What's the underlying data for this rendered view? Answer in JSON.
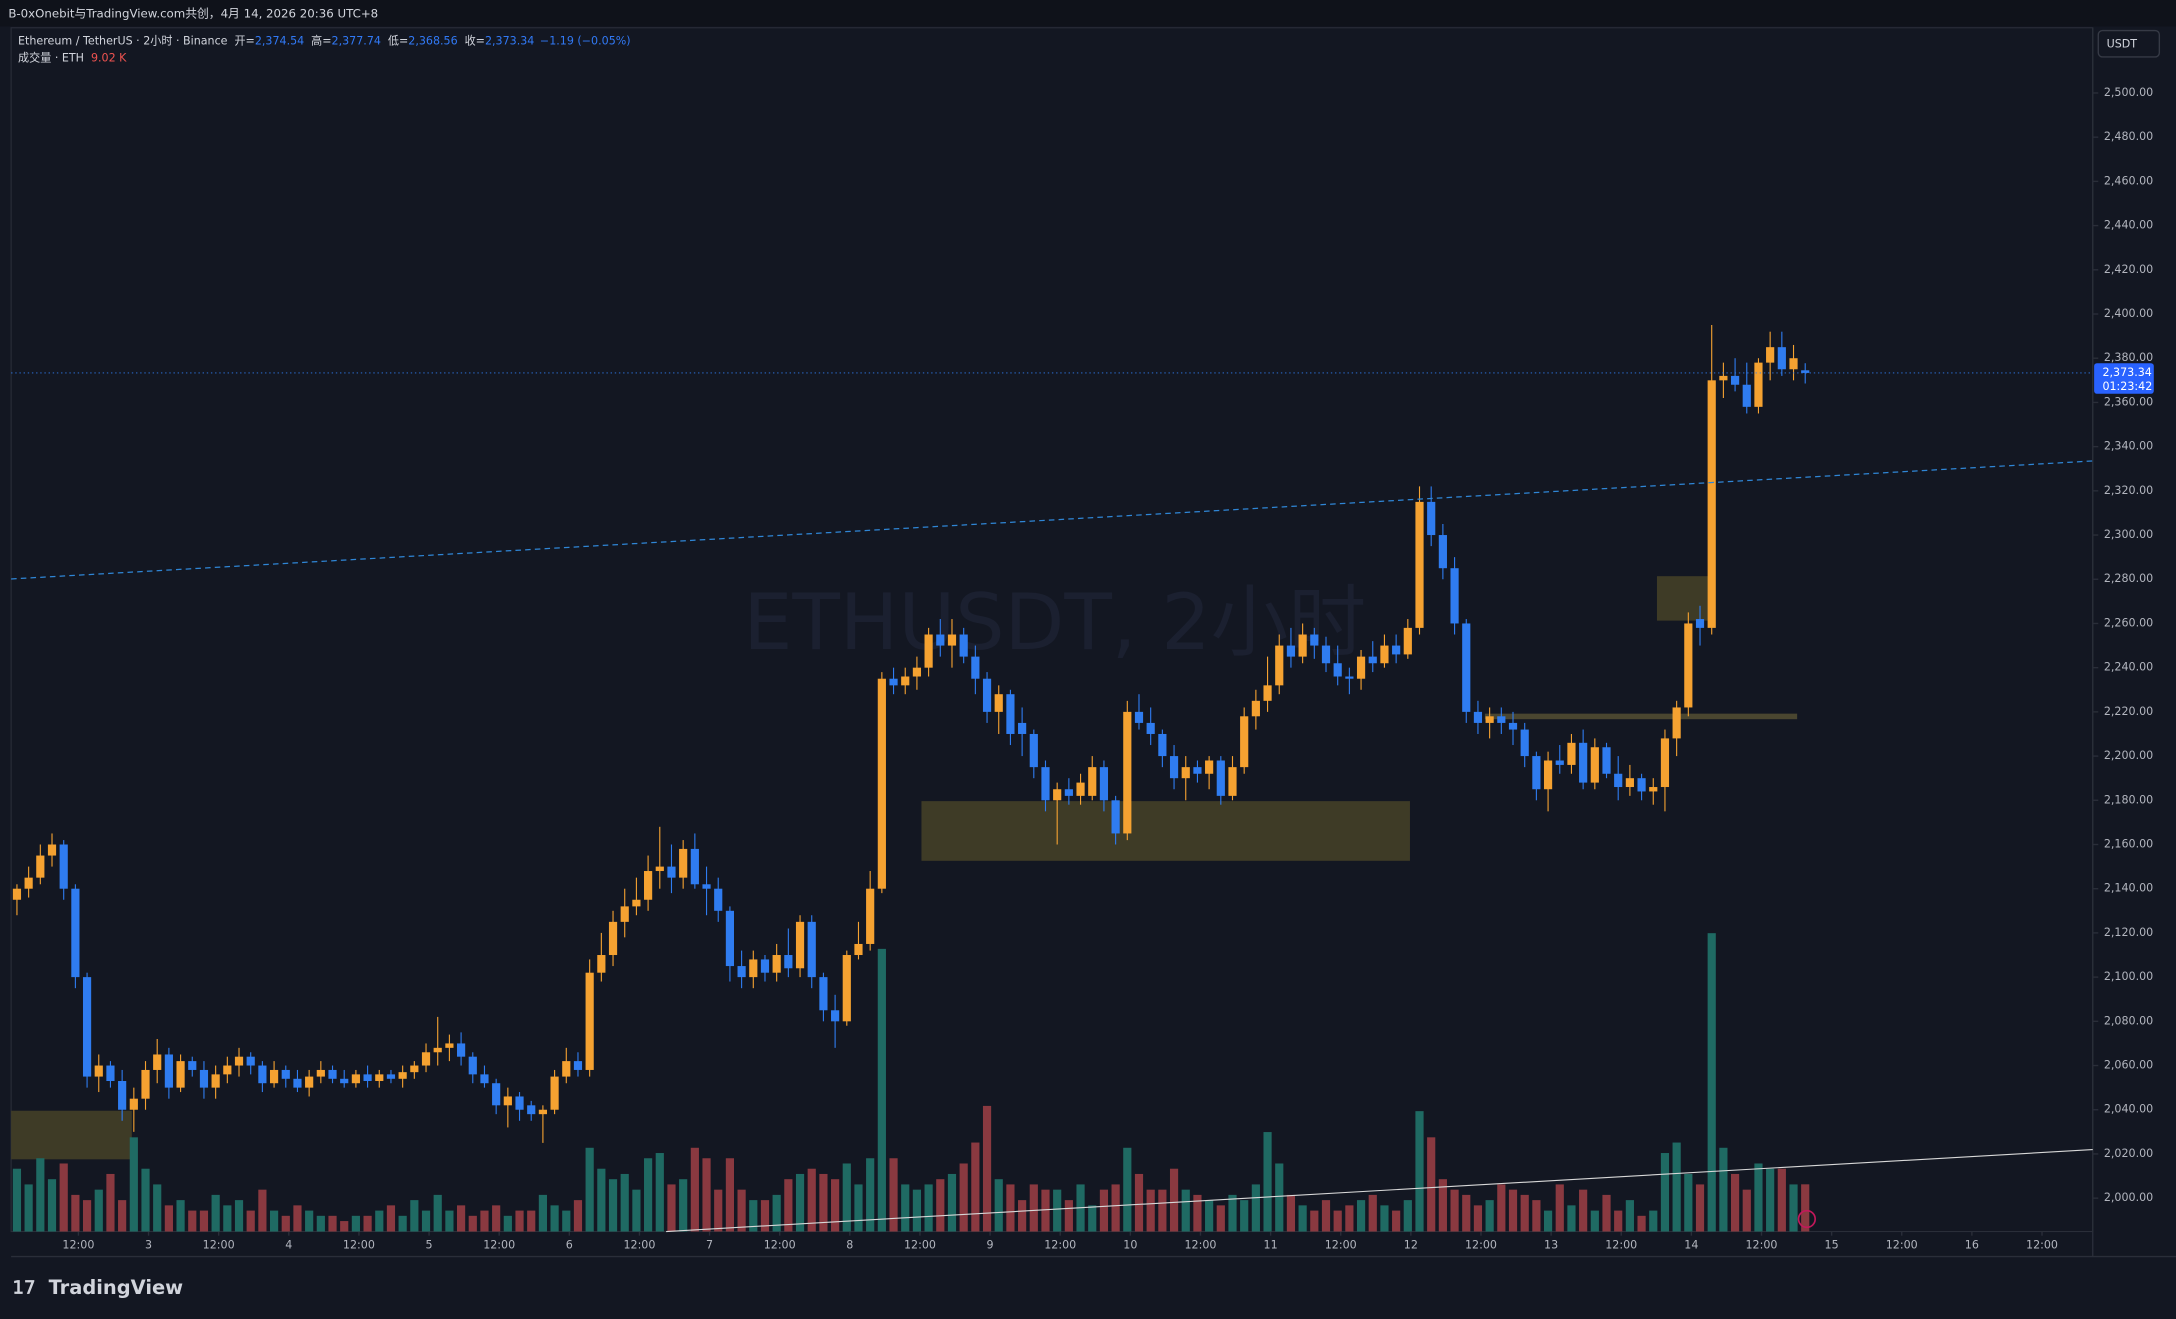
{
  "header": "B-0xOnebit与TradingView.com共创，4月 14, 2026 20:36 UTC+8",
  "footer": "TradingView",
  "chart_data": {
    "type": "candlestick",
    "symbol": "Ethereum / TetherUS · 2小时 · Binance",
    "legend": [
      {
        "key": "开=",
        "value": "2,374.54"
      },
      {
        "key": "高=",
        "value": "2,377.74"
      },
      {
        "key": "低=",
        "value": "2,368.56"
      },
      {
        "key": "收=",
        "value": "2,373.34"
      }
    ],
    "change": "−1.19 (−0.05%)",
    "volume_title": "成交量 · ETH",
    "volume_last": "9.02 K",
    "watermark": "ETHUSDT, 2小时",
    "currency": "USDT",
    "up_color": "#f5a231",
    "down_color": "#2f7cf0",
    "volume_up_color": "#1f6a63",
    "volume_down_color": "#8a3940",
    "ohlc": [
      [
        2135,
        2142,
        2128,
        2140
      ],
      [
        2140,
        2150,
        2136,
        2145
      ],
      [
        2145,
        2160,
        2142,
        2155
      ],
      [
        2155,
        2165,
        2150,
        2160
      ],
      [
        2160,
        2162,
        2135,
        2140
      ],
      [
        2140,
        2142,
        2095,
        2100
      ],
      [
        2100,
        2102,
        2050,
        2055
      ],
      [
        2055,
        2065,
        2048,
        2060
      ],
      [
        2060,
        2062,
        2050,
        2053
      ],
      [
        2053,
        2058,
        2035,
        2040
      ],
      [
        2040,
        2050,
        2030,
        2045
      ],
      [
        2045,
        2062,
        2040,
        2058
      ],
      [
        2058,
        2072,
        2052,
        2065
      ],
      [
        2065,
        2068,
        2045,
        2050
      ],
      [
        2050,
        2065,
        2048,
        2062
      ],
      [
        2062,
        2064,
        2055,
        2058
      ],
      [
        2058,
        2062,
        2045,
        2050
      ],
      [
        2050,
        2060,
        2045,
        2056
      ],
      [
        2056,
        2064,
        2052,
        2060
      ],
      [
        2060,
        2068,
        2055,
        2064
      ],
      [
        2064,
        2066,
        2056,
        2060
      ],
      [
        2060,
        2062,
        2048,
        2052
      ],
      [
        2052,
        2062,
        2050,
        2058
      ],
      [
        2058,
        2060,
        2050,
        2054
      ],
      [
        2054,
        2058,
        2048,
        2050
      ],
      [
        2050,
        2058,
        2046,
        2055
      ],
      [
        2055,
        2062,
        2052,
        2058
      ],
      [
        2058,
        2060,
        2052,
        2054
      ],
      [
        2054,
        2058,
        2050,
        2052
      ],
      [
        2052,
        2058,
        2050,
        2056
      ],
      [
        2056,
        2060,
        2050,
        2053
      ],
      [
        2053,
        2058,
        2050,
        2056
      ],
      [
        2056,
        2058,
        2052,
        2054
      ],
      [
        2054,
        2060,
        2050,
        2057
      ],
      [
        2057,
        2062,
        2054,
        2060
      ],
      [
        2060,
        2070,
        2057,
        2066
      ],
      [
        2066,
        2082,
        2060,
        2068
      ],
      [
        2068,
        2074,
        2062,
        2070
      ],
      [
        2070,
        2075,
        2060,
        2064
      ],
      [
        2064,
        2066,
        2052,
        2056
      ],
      [
        2056,
        2060,
        2050,
        2052
      ],
      [
        2052,
        2054,
        2038,
        2042
      ],
      [
        2042,
        2050,
        2032,
        2046
      ],
      [
        2046,
        2048,
        2035,
        2040
      ],
      [
        2042,
        2044,
        2035,
        2038
      ],
      [
        2038,
        2042,
        2025,
        2040
      ],
      [
        2040,
        2058,
        2038,
        2055
      ],
      [
        2055,
        2068,
        2052,
        2062
      ],
      [
        2062,
        2066,
        2055,
        2058
      ],
      [
        2058,
        2108,
        2055,
        2102
      ],
      [
        2102,
        2120,
        2098,
        2110
      ],
      [
        2110,
        2130,
        2105,
        2125
      ],
      [
        2125,
        2140,
        2118,
        2132
      ],
      [
        2132,
        2145,
        2128,
        2135
      ],
      [
        2135,
        2155,
        2130,
        2148
      ],
      [
        2148,
        2168,
        2140,
        2150
      ],
      [
        2150,
        2160,
        2138,
        2145
      ],
      [
        2145,
        2162,
        2140,
        2158
      ],
      [
        2158,
        2165,
        2140,
        2142
      ],
      [
        2142,
        2150,
        2128,
        2140
      ],
      [
        2140,
        2145,
        2125,
        2130
      ],
      [
        2130,
        2132,
        2098,
        2105
      ],
      [
        2105,
        2112,
        2095,
        2100
      ],
      [
        2100,
        2112,
        2095,
        2108
      ],
      [
        2108,
        2110,
        2098,
        2102
      ],
      [
        2102,
        2115,
        2098,
        2110
      ],
      [
        2110,
        2122,
        2100,
        2104
      ],
      [
        2104,
        2128,
        2100,
        2125
      ],
      [
        2125,
        2128,
        2095,
        2100
      ],
      [
        2100,
        2102,
        2080,
        2085
      ],
      [
        2085,
        2092,
        2068,
        2080
      ],
      [
        2080,
        2112,
        2078,
        2110
      ],
      [
        2110,
        2125,
        2108,
        2115
      ],
      [
        2115,
        2148,
        2112,
        2140
      ],
      [
        2140,
        2238,
        2138,
        2235
      ],
      [
        2235,
        2240,
        2228,
        2232
      ],
      [
        2232,
        2240,
        2228,
        2236
      ],
      [
        2236,
        2245,
        2230,
        2240
      ],
      [
        2240,
        2258,
        2236,
        2255
      ],
      [
        2255,
        2262,
        2245,
        2250
      ],
      [
        2250,
        2262,
        2240,
        2255
      ],
      [
        2255,
        2258,
        2242,
        2245
      ],
      [
        2245,
        2250,
        2228,
        2235
      ],
      [
        2235,
        2238,
        2215,
        2220
      ],
      [
        2220,
        2232,
        2210,
        2228
      ],
      [
        2228,
        2230,
        2205,
        2210
      ],
      [
        2215,
        2222,
        2200,
        2210
      ],
      [
        2210,
        2212,
        2190,
        2195
      ],
      [
        2195,
        2198,
        2175,
        2180
      ],
      [
        2180,
        2188,
        2160,
        2185
      ],
      [
        2185,
        2190,
        2178,
        2182
      ],
      [
        2182,
        2192,
        2178,
        2188
      ],
      [
        2182,
        2200,
        2180,
        2195
      ],
      [
        2195,
        2198,
        2175,
        2180
      ],
      [
        2180,
        2182,
        2160,
        2165
      ],
      [
        2165,
        2225,
        2162,
        2220
      ],
      [
        2220,
        2228,
        2212,
        2215
      ],
      [
        2215,
        2222,
        2205,
        2210
      ],
      [
        2210,
        2212,
        2195,
        2200
      ],
      [
        2200,
        2205,
        2185,
        2190
      ],
      [
        2190,
        2200,
        2180,
        2195
      ],
      [
        2195,
        2198,
        2188,
        2192
      ],
      [
        2192,
        2200,
        2185,
        2198
      ],
      [
        2198,
        2200,
        2178,
        2182
      ],
      [
        2182,
        2200,
        2180,
        2195
      ],
      [
        2195,
        2222,
        2192,
        2218
      ],
      [
        2218,
        2230,
        2212,
        2225
      ],
      [
        2225,
        2245,
        2220,
        2232
      ],
      [
        2232,
        2255,
        2228,
        2250
      ],
      [
        2250,
        2258,
        2240,
        2245
      ],
      [
        2245,
        2260,
        2242,
        2255
      ],
      [
        2255,
        2258,
        2244,
        2250
      ],
      [
        2250,
        2254,
        2238,
        2242
      ],
      [
        2242,
        2250,
        2232,
        2236
      ],
      [
        2236,
        2240,
        2228,
        2235
      ],
      [
        2235,
        2248,
        2230,
        2245
      ],
      [
        2245,
        2252,
        2238,
        2242
      ],
      [
        2242,
        2255,
        2240,
        2250
      ],
      [
        2250,
        2255,
        2242,
        2246
      ],
      [
        2246,
        2262,
        2244,
        2258
      ],
      [
        2258,
        2322,
        2255,
        2315
      ],
      [
        2315,
        2322,
        2295,
        2300
      ],
      [
        2300,
        2305,
        2280,
        2285
      ],
      [
        2285,
        2290,
        2255,
        2260
      ],
      [
        2260,
        2262,
        2215,
        2220
      ],
      [
        2220,
        2225,
        2210,
        2215
      ],
      [
        2215,
        2222,
        2208,
        2218
      ],
      [
        2218,
        2222,
        2210,
        2215
      ],
      [
        2215,
        2220,
        2205,
        2212
      ],
      [
        2212,
        2215,
        2195,
        2200
      ],
      [
        2200,
        2202,
        2180,
        2185
      ],
      [
        2185,
        2202,
        2175,
        2198
      ],
      [
        2198,
        2205,
        2192,
        2196
      ],
      [
        2196,
        2210,
        2192,
        2206
      ],
      [
        2206,
        2212,
        2185,
        2188
      ],
      [
        2188,
        2208,
        2185,
        2204
      ],
      [
        2204,
        2206,
        2190,
        2192
      ],
      [
        2192,
        2200,
        2180,
        2186
      ],
      [
        2186,
        2196,
        2182,
        2190
      ],
      [
        2190,
        2192,
        2180,
        2184
      ],
      [
        2184,
        2190,
        2178,
        2186
      ],
      [
        2186,
        2212,
        2175,
        2208
      ],
      [
        2208,
        2225,
        2200,
        2222
      ],
      [
        2222,
        2265,
        2218,
        2260
      ],
      [
        2262,
        2268,
        2250,
        2258
      ],
      [
        2258,
        2395,
        2255,
        2370
      ],
      [
        2370,
        2378,
        2362,
        2372
      ],
      [
        2372,
        2380,
        2365,
        2368
      ],
      [
        2368,
        2378,
        2355,
        2358
      ],
      [
        2358,
        2380,
        2355,
        2378
      ],
      [
        2378,
        2392,
        2370,
        2385
      ],
      [
        2385,
        2392,
        2372,
        2375
      ],
      [
        2375,
        2386,
        2370,
        2380
      ],
      [
        2374.54,
        2377.74,
        2368.56,
        2373.34
      ]
    ],
    "volume": [
      12,
      9,
      14,
      10,
      13,
      7,
      6,
      8,
      11,
      6,
      18,
      12,
      9,
      5,
      6,
      4,
      4,
      7,
      5,
      6,
      4,
      8,
      4,
      3,
      5,
      4,
      3,
      3,
      2,
      3,
      3,
      4,
      5,
      3,
      6,
      4,
      7,
      4,
      5,
      3,
      4,
      5,
      3,
      4,
      4,
      7,
      5,
      4,
      6,
      16,
      12,
      10,
      11,
      8,
      14,
      15,
      9,
      10,
      16,
      14,
      8,
      14,
      8,
      6,
      6,
      7,
      10,
      11,
      12,
      11,
      10,
      13,
      9,
      14,
      54,
      14,
      9,
      8,
      9,
      10,
      11,
      13,
      17,
      24,
      10,
      9,
      6,
      9,
      8,
      8,
      6,
      9,
      5,
      8,
      9,
      16,
      11,
      8,
      8,
      12,
      8,
      7,
      6,
      5,
      7,
      6,
      9,
      19,
      13,
      7,
      5,
      4,
      6,
      4,
      5,
      6,
      7,
      5,
      4,
      6,
      23,
      18,
      10,
      8,
      7,
      5,
      6,
      9,
      8,
      7,
      6,
      4,
      9,
      5,
      8,
      4,
      7,
      4,
      6,
      3,
      4,
      15,
      17,
      11,
      9,
      57,
      16,
      11,
      8,
      13,
      12,
      12,
      9,
      9.02
    ],
    "last_price": {
      "value": 2373.34,
      "label": "2,373.34"
    },
    "countdown": "01:23:42",
    "xlim": [
      -0.5,
      177.6
    ],
    "ylim": [
      1984.9,
      2529.5
    ],
    "y2lim": [
      0,
      100
    ],
    "yticks": [
      {
        "value": 2000,
        "label": "2,000.00"
      },
      {
        "value": 2020,
        "label": "2,020.00"
      },
      {
        "value": 2040,
        "label": "2,040.00"
      },
      {
        "value": 2060,
        "label": "2,060.00"
      },
      {
        "value": 2080,
        "label": "2,080.00"
      },
      {
        "value": 2100,
        "label": "2,100.00"
      },
      {
        "value": 2120,
        "label": "2,120.00"
      },
      {
        "value": 2140,
        "label": "2,140.00"
      },
      {
        "value": 2160,
        "label": "2,160.00"
      },
      {
        "value": 2180,
        "label": "2,180.00"
      },
      {
        "value": 2200,
        "label": "2,200.00"
      },
      {
        "value": 2220,
        "label": "2,220.00"
      },
      {
        "value": 2240,
        "label": "2,240.00"
      },
      {
        "value": 2260,
        "label": "2,260.00"
      },
      {
        "value": 2280,
        "label": "2,280.00"
      },
      {
        "value": 2300,
        "label": "2,300.00"
      },
      {
        "value": 2320,
        "label": "2,320.00"
      },
      {
        "value": 2340,
        "label": "2,340.00"
      },
      {
        "value": 2360,
        "label": "2,360.00"
      },
      {
        "value": 2380,
        "label": "2,380.00"
      },
      {
        "value": 2400,
        "label": "2,400.00"
      },
      {
        "value": 2420,
        "label": "2,420.00"
      },
      {
        "value": 2440,
        "label": "2,440.00"
      },
      {
        "value": 2460,
        "label": "2,460.00"
      },
      {
        "value": 2480,
        "label": "2,480.00"
      },
      {
        "value": 2500,
        "label": "2,500.00"
      }
    ],
    "xticks": [
      {
        "value": 5.26,
        "label": "12:00"
      },
      {
        "value": 11.26,
        "label": "3"
      },
      {
        "value": 17.26,
        "label": "12:00"
      },
      {
        "value": 23.26,
        "label": "4"
      },
      {
        "value": 29.26,
        "label": "12:00"
      },
      {
        "value": 35.26,
        "label": "5"
      },
      {
        "value": 41.26,
        "label": "12:00"
      },
      {
        "value": 47.26,
        "label": "6"
      },
      {
        "value": 53.26,
        "label": "12:00"
      },
      {
        "value": 59.26,
        "label": "7"
      },
      {
        "value": 65.26,
        "label": "12:00"
      },
      {
        "value": 71.26,
        "label": "8"
      },
      {
        "value": 77.26,
        "label": "12:00"
      },
      {
        "value": 83.26,
        "label": "9"
      },
      {
        "value": 89.26,
        "label": "12:00"
      },
      {
        "value": 95.26,
        "label": "10"
      },
      {
        "value": 101.26,
        "label": "12:00"
      },
      {
        "value": 107.26,
        "label": "11"
      },
      {
        "value": 113.26,
        "label": "12:00"
      },
      {
        "value": 119.26,
        "label": "12"
      },
      {
        "value": 125.26,
        "label": "12:00"
      },
      {
        "value": 131.26,
        "label": "13"
      },
      {
        "value": 137.26,
        "label": "12:00"
      },
      {
        "value": 143.26,
        "label": "14"
      },
      {
        "value": 149.26,
        "label": "12:00"
      },
      {
        "value": 155.26,
        "label": "15"
      },
      {
        "value": 161.26,
        "label": "12:00"
      },
      {
        "value": 167.26,
        "label": "16"
      },
      {
        "value": 173.26,
        "label": "12:00"
      }
    ]
  }
}
